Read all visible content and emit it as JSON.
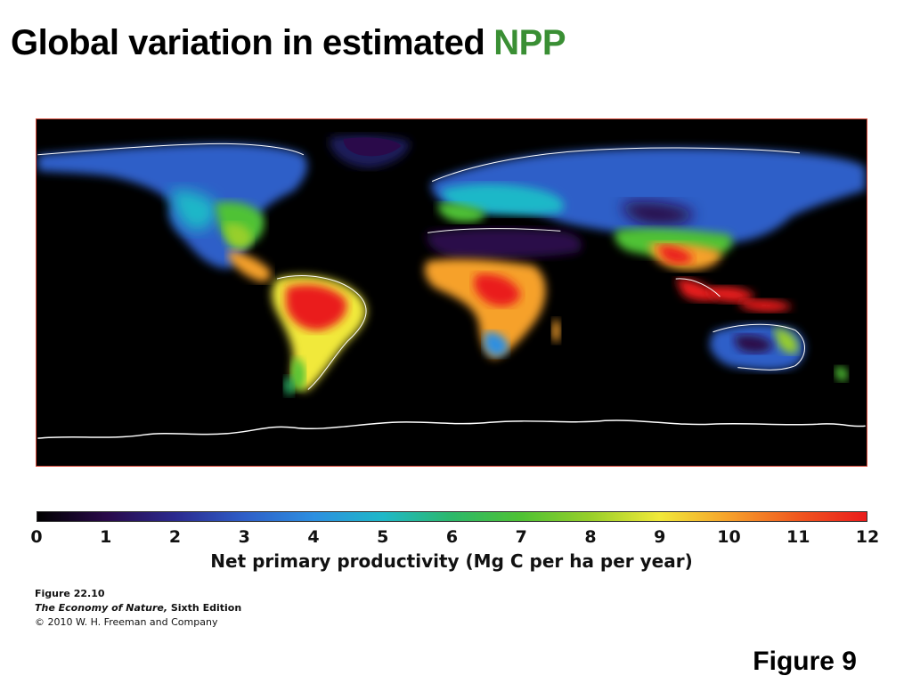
{
  "title": {
    "main": "Global variation in estimated",
    "accent": "NPP"
  },
  "colors": {
    "accent": "#3a8f34",
    "map_background": "#000000",
    "frame_border": "#d64a3a",
    "coastline": "#ffffff"
  },
  "legend": {
    "ticks": [
      "0",
      "1",
      "2",
      "3",
      "4",
      "5",
      "6",
      "7",
      "8",
      "9",
      "10",
      "11",
      "12"
    ],
    "min": 0,
    "max": 12,
    "label": "Net primary productivity (Mg C per ha per year)",
    "scale": [
      {
        "value": 0,
        "color": "#000000"
      },
      {
        "value": 1,
        "color": "#2a0a4a"
      },
      {
        "value": 2,
        "color": "#2b2a8f"
      },
      {
        "value": 3,
        "color": "#2f5fc8"
      },
      {
        "value": 4,
        "color": "#2d8fe0"
      },
      {
        "value": 5,
        "color": "#1fb8c8"
      },
      {
        "value": 6,
        "color": "#2cb86a"
      },
      {
        "value": 7,
        "color": "#4fc234"
      },
      {
        "value": 8,
        "color": "#98cf2a"
      },
      {
        "value": 9,
        "color": "#f1e93a"
      },
      {
        "value": 10,
        "color": "#f6a12b"
      },
      {
        "value": 11,
        "color": "#f0581f"
      },
      {
        "value": 12,
        "color": "#ea1c1c"
      }
    ]
  },
  "caption": {
    "figure_number": "Figure 22.10",
    "book_title": "The Economy of Nature,",
    "edition": " Sixth Edition",
    "copyright": "© 2010 W. H. Freeman and Company"
  },
  "figure_label": "Figure 9"
}
